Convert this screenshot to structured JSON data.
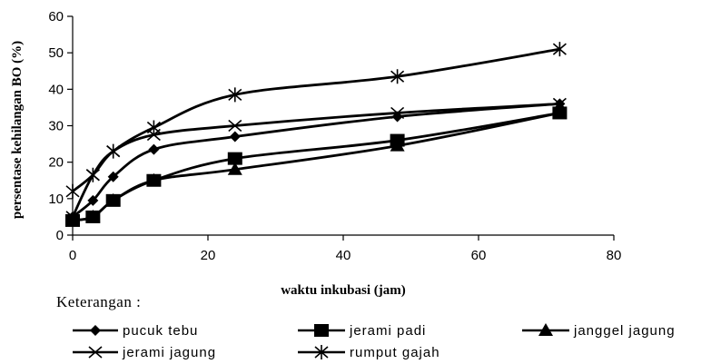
{
  "chart_data": {
    "type": "line",
    "xlabel": "waktu inkubasi (jam)",
    "ylabel": "persentase kehilangan BO (%)",
    "xlim": [
      0,
      80
    ],
    "ylim": [
      0,
      60
    ],
    "xticks": [
      "0",
      "20",
      "40",
      "60",
      "80"
    ],
    "yticks": [
      "0",
      "10",
      "20",
      "30",
      "40",
      "50",
      "60"
    ],
    "x": [
      0,
      3,
      6,
      12,
      24,
      48,
      72
    ],
    "legend_title": "Keterangan :",
    "legend_position": "bottom",
    "series": [
      {
        "name": "pucuk tebu",
        "marker": "diamond",
        "values": [
          5,
          9.5,
          16,
          23.5,
          27,
          32.5,
          36
        ]
      },
      {
        "name": "jerami padi",
        "marker": "square",
        "values": [
          4,
          5,
          9.5,
          15,
          21,
          26,
          33.5
        ]
      },
      {
        "name": "janggel jagung",
        "marker": "triangle",
        "values": [
          4,
          5,
          9.5,
          15,
          18,
          24.5,
          33.5
        ]
      },
      {
        "name": "jerami jagung",
        "marker": "x",
        "values": [
          5,
          16.5,
          23,
          27.5,
          30,
          33.5,
          36
        ]
      },
      {
        "name": "rumput gajah",
        "marker": "star",
        "values": [
          12,
          16.5,
          23,
          29.5,
          38.5,
          43.5,
          51
        ]
      }
    ],
    "grid": false
  }
}
